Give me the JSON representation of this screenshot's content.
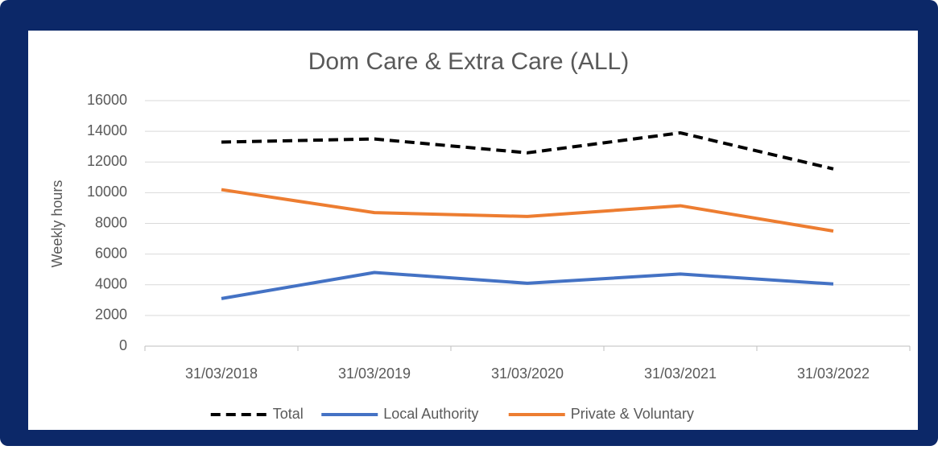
{
  "chart_data": {
    "type": "line",
    "title": "Dom Care & Extra Care (ALL)",
    "y_label": "Weekly hours",
    "categories": [
      "31/03/2018",
      "31/03/2019",
      "31/03/2020",
      "31/03/2021",
      "31/03/2022"
    ],
    "series": [
      {
        "name": "Total",
        "color": "#000000",
        "dashed": true,
        "values": [
          13300,
          13500,
          12600,
          13900,
          11550
        ]
      },
      {
        "name": "Local Authority",
        "color": "#4472c4",
        "dashed": false,
        "values": [
          3100,
          4800,
          4100,
          4700,
          4050
        ]
      },
      {
        "name": "Private & Voluntary",
        "color": "#ed7d31",
        "dashed": false,
        "values": [
          10200,
          8700,
          8450,
          9150,
          7500
        ]
      }
    ],
    "ylim": [
      0,
      16000
    ],
    "yticks": [
      0,
      2000,
      4000,
      6000,
      8000,
      10000,
      12000,
      14000,
      16000
    ],
    "grid": true,
    "legend": "bottom"
  }
}
